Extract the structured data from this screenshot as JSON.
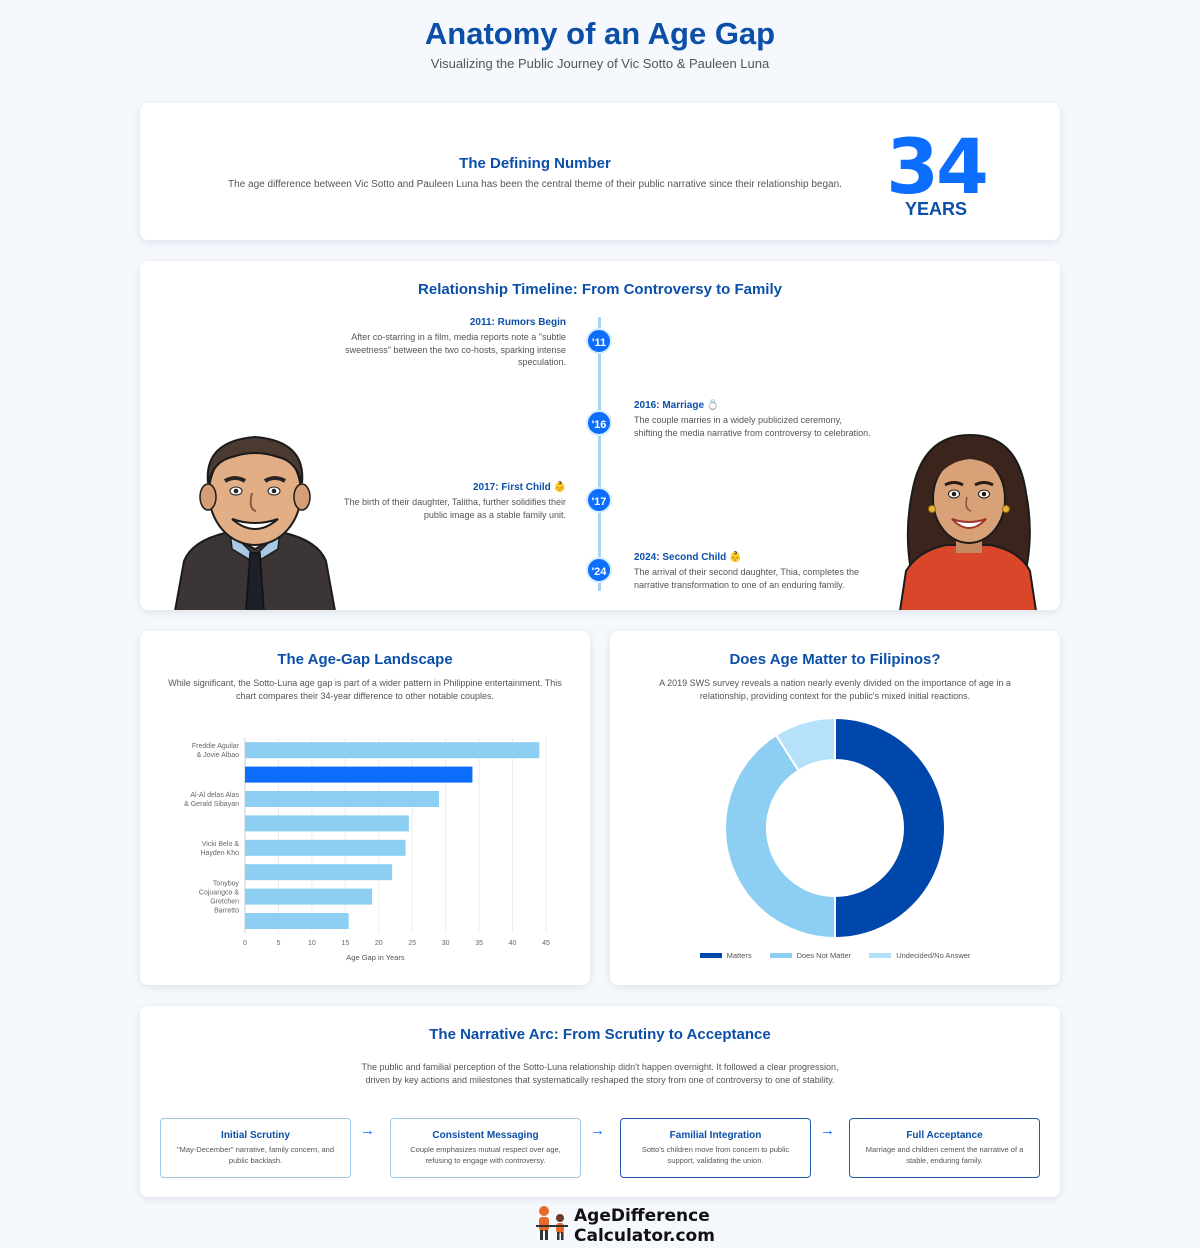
{
  "header": {
    "title": "Anatomy of an Age Gap",
    "subtitle": "Visualizing the Public Journey of Vic Sotto & Pauleen Luna"
  },
  "defining_number": {
    "title": "The Defining Number",
    "text": "The age difference between Vic Sotto and Pauleen Luna has been the central theme of their public narrative since their relationship began.",
    "value": "34",
    "unit": "YEARS"
  },
  "timeline": {
    "title": "Relationship Timeline: From Controversy to Family",
    "events": [
      {
        "badge": "'11",
        "year_title": "2011: Rumors Begin",
        "text": "After co-starring in a film, media reports note a \"subtle sweetness\" between the two co-hosts, sparking intense speculation.",
        "side": "left"
      },
      {
        "badge": "'16",
        "year_title": "2016: Marriage 💍",
        "text": "The couple marries in a widely publicized ceremony, shifting the media narrative from controversy to celebration.",
        "side": "right"
      },
      {
        "badge": "'17",
        "year_title": "2017: First Child 👶",
        "text": "The birth of their daughter, Talitha, further solidifies their public image as a stable family unit.",
        "side": "left"
      },
      {
        "badge": "'24",
        "year_title": "2024: Second Child 👶",
        "text": "The arrival of their second daughter, Thia, completes the narrative transformation to one of an enduring family.",
        "side": "right"
      }
    ]
  },
  "age_gap": {
    "title": "The Age-Gap Landscape",
    "description": "While significant, the Sotto-Luna age gap is part of a wider pattern in Philippine entertainment. This chart compares their 34-year difference to other notable couples."
  },
  "survey": {
    "title": "Does Age Matter to Filipinos?",
    "description": "A 2019 SWS survey reveals a nation nearly evenly divided on the importance of age in a relationship, providing context for the public's mixed initial reactions."
  },
  "chart_data": [
    {
      "type": "bar",
      "orientation": "horizontal",
      "categories": [
        "Freddie Aguilar & Jovie Albao",
        "",
        "Al-Al delas Alas & Gerald Sibayan",
        "",
        "Vicki Belo & Hayden Kho",
        "",
        "Tonyboy Cojuangco & Gretchen Barretto",
        ""
      ],
      "tick_lines": [
        [
          "Freddie Aguilar",
          "& Jovie Albao"
        ],
        [],
        [
          "Al-Al delas Alas",
          "& Gerald Sibayan"
        ],
        [],
        [
          "Vicki Belo &",
          "Hayden Kho"
        ],
        [],
        [
          "Tonyboy",
          "Cojuangco &",
          "Gretchen",
          "Barretto"
        ],
        []
      ],
      "values": [
        44,
        34,
        29,
        24.5,
        24,
        22,
        19,
        15.5
      ],
      "highlight_index": 1,
      "xlabel": "Age Gap in Years",
      "ylabel": "",
      "xlim": [
        0,
        45
      ],
      "xticks": [
        0,
        5,
        10,
        15,
        20,
        25,
        30,
        35,
        40,
        45
      ],
      "grid": true,
      "colors": {
        "bar": "#8ccff3",
        "highlight": "#0d6efd"
      }
    },
    {
      "type": "pie",
      "variant": "donut",
      "labels": [
        "Matters",
        "Does Not Matter",
        "Undecided/No Answer"
      ],
      "values": [
        50,
        41,
        9
      ],
      "colors": [
        "#0047ab",
        "#8ccff3",
        "#b6e1fb"
      ],
      "legend": "bottom"
    }
  ],
  "narrative": {
    "title": "The Narrative Arc: From Scrutiny to Acceptance",
    "description": "The public and familial perception of the Sotto-Luna relationship didn't happen overnight. It followed a clear progression, driven by key actions and milestones that systematically reshaped the story from one of controversy to one of stability.",
    "arrow": "→",
    "steps": [
      {
        "title": "Initial Scrutiny",
        "text": "\"May-December\" narrative, family concern, and public backlash."
      },
      {
        "title": "Consistent Messaging",
        "text": "Couple emphasizes mutual respect over age, refusing to engage with controversy."
      },
      {
        "title": "Familial Integration",
        "text": "Sotto's children move from concern to public support, validating the union."
      },
      {
        "title": "Full Acceptance",
        "text": "Marriage and children cement the narrative of a stable, enduring family."
      }
    ]
  },
  "footer": {
    "brand_line1": "AgeDifference",
    "brand_line2": "Calculator.com"
  },
  "icons": [
    "vic-sotto-avatar-icon",
    "pauleen-luna-avatar-icon",
    "agedifference-logo-icon"
  ],
  "theme": {
    "primary": "#0b4fa8",
    "accent": "#0d6efd",
    "light": "#8ccff3"
  }
}
